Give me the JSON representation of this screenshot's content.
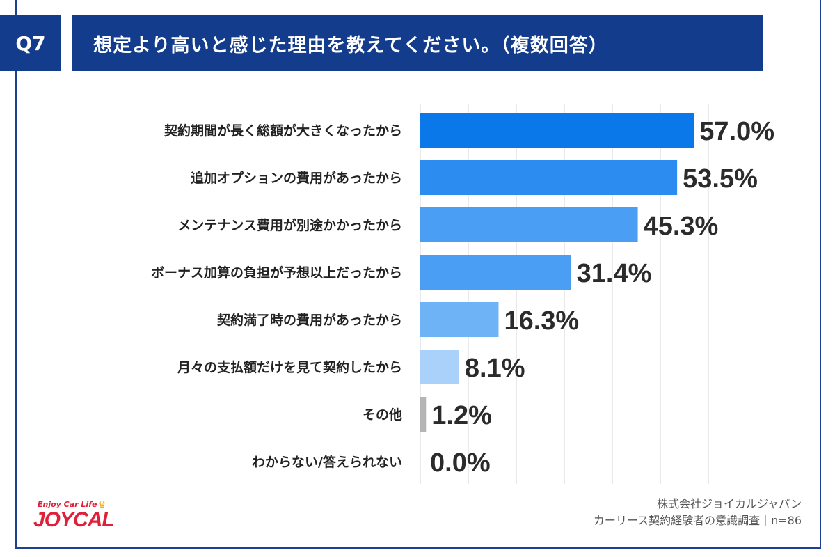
{
  "header": {
    "question_no": "Q7",
    "title": "想定より高いと感じた理由を教えてください。（複数回答）"
  },
  "colors": {
    "header_bg": "#143c8c",
    "bars": [
      "#0a78e8",
      "#2d8cf0",
      "#4a9ff5",
      "#4a9ff5",
      "#6fb3f7",
      "#a9d1fa",
      "#b5b5b5",
      "#cccccc"
    ],
    "grid": "#e2e2e2"
  },
  "chart_data": {
    "type": "bar",
    "orientation": "horizontal",
    "categories": [
      "契約期間が長く総額が大きくなったから",
      "追加オプションの費用があったから",
      "メンテナンス費用が別途かかったから",
      "ボーナス加算の負担が予想以上だったから",
      "契約満了時の費用があったから",
      "月々の支払額だけを見て契約したから",
      "その他",
      "わからない/答えられない"
    ],
    "values": [
      57.0,
      53.5,
      45.3,
      31.4,
      16.3,
      8.1,
      1.2,
      0.0
    ],
    "value_labels": [
      "57.0%",
      "53.5%",
      "45.3%",
      "31.4%",
      "16.3%",
      "8.1%",
      "1.2%",
      "0.0%"
    ],
    "xlim": [
      0,
      60
    ],
    "grid": true
  },
  "logo": {
    "tagline": "Enjoy Car Life",
    "brand": "JOYCAL"
  },
  "source": {
    "company": "株式会社ジョイカルジャパン",
    "survey": "カーリース契約経験者の意識調査｜n=86"
  }
}
